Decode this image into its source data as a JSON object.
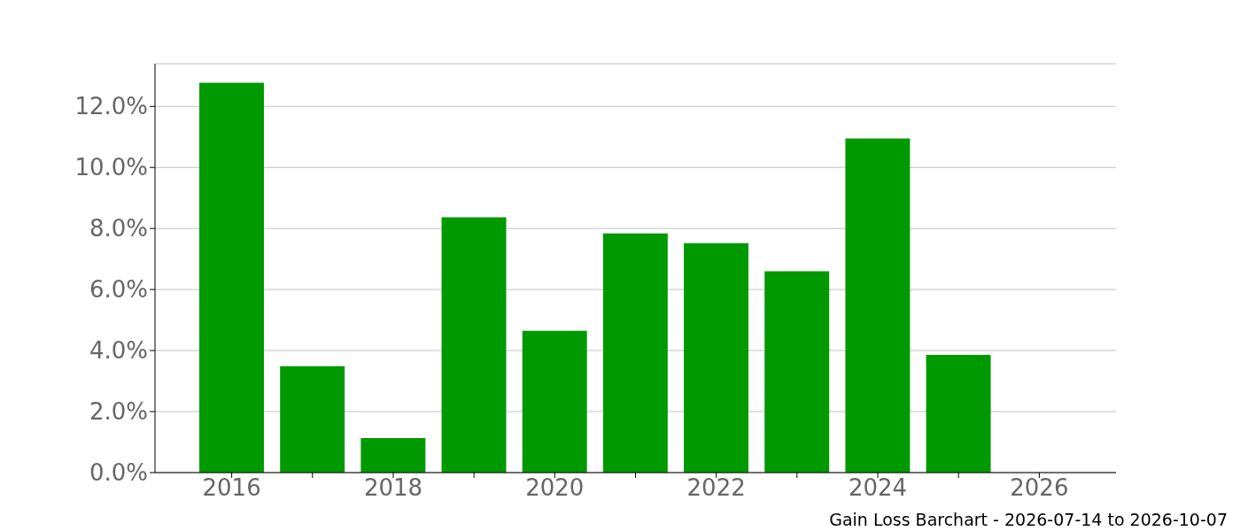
{
  "chart_data": {
    "type": "bar",
    "title": "Gain Loss Barchart - 2026-07-14 to 2026-10-07",
    "x": [
      2016,
      2017,
      2018,
      2019,
      2020,
      2021,
      2022,
      2023,
      2024,
      2025
    ],
    "values": [
      12.78,
      3.49,
      1.13,
      8.37,
      4.65,
      7.84,
      7.52,
      6.6,
      10.95,
      3.86
    ],
    "color": "#009900",
    "xlim": [
      2015.05,
      2026.95
    ],
    "xticks": [
      2016,
      {
        "value": 2017,
        "label": null
      },
      2018,
      {
        "value": 2019,
        "label": null
      },
      2020,
      {
        "value": 2021,
        "label": null
      },
      2022,
      {
        "value": 2023,
        "label": null
      },
      2024,
      {
        "value": 2025,
        "label": null
      },
      2026
    ],
    "ylim": [
      0,
      13.4
    ],
    "yticks": [
      {
        "value": 0,
        "label": "0.0%"
      },
      {
        "value": 2,
        "label": "2.0%"
      },
      {
        "value": 4,
        "label": "4.0%"
      },
      {
        "value": 6,
        "label": "6.0%"
      },
      {
        "value": 8,
        "label": "8.0%"
      },
      {
        "value": 10,
        "label": "10.0%"
      },
      {
        "value": 12,
        "label": "12.0%"
      }
    ],
    "grid": "y"
  }
}
